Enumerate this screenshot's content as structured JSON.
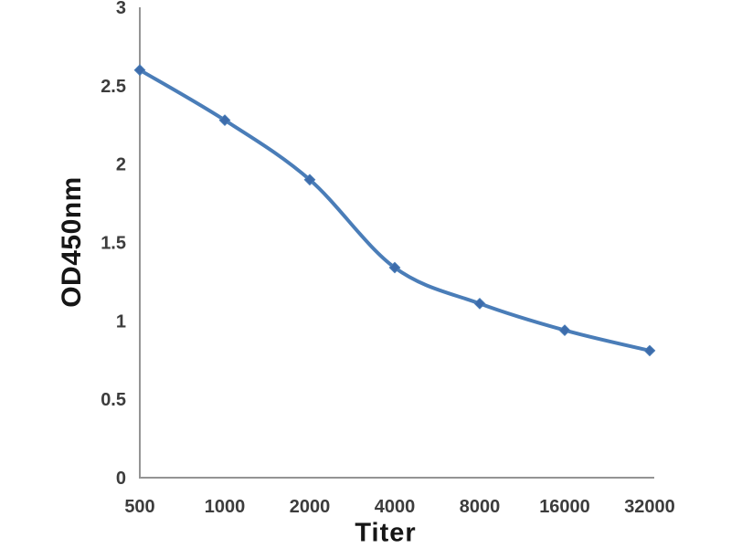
{
  "chart_data": {
    "type": "line",
    "title": "",
    "xlabel": "Titer",
    "ylabel": "OD450nm",
    "categories": [
      "500",
      "1000",
      "2000",
      "4000",
      "8000",
      "16000",
      "32000"
    ],
    "series": [
      {
        "name": "OD450nm",
        "values": [
          2.6,
          2.28,
          1.9,
          1.34,
          1.11,
          0.94,
          0.81
        ]
      }
    ],
    "y_ticks": [
      0,
      0.5,
      1,
      1.5,
      2,
      2.5,
      3
    ],
    "ylim": [
      0,
      3
    ],
    "grid": false,
    "legend": "none",
    "line_style": "smooth",
    "marker": "diamond",
    "colors": {
      "line": "#4a7db8",
      "marker": "#3d6cab",
      "axis": "#949494",
      "tick_label": "#3c3c3c",
      "axis_title": "#161616",
      "background": "#ffffff"
    }
  }
}
